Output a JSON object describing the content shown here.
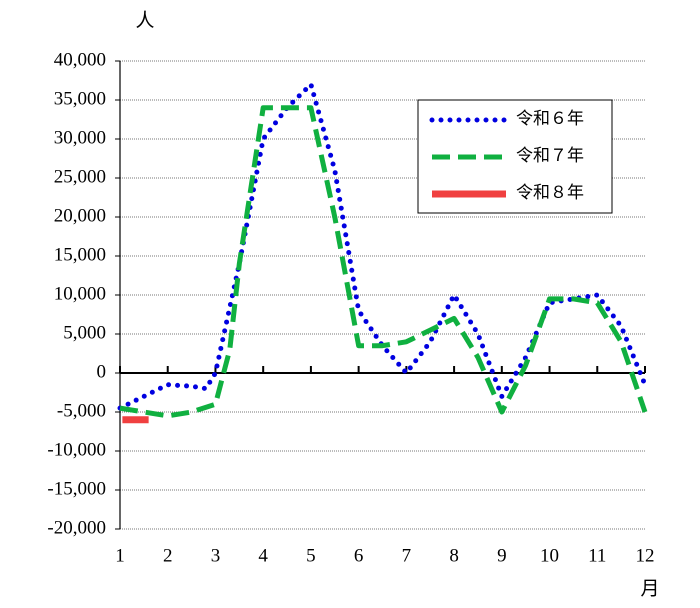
{
  "chart_data": {
    "type": "line",
    "y_unit": "人",
    "x_unit": "月",
    "xlim": [
      1,
      12
    ],
    "xticks": [
      1,
      2,
      3,
      4,
      5,
      6,
      7,
      8,
      9,
      10,
      11,
      12
    ],
    "ylim": [
      -20000,
      40000
    ],
    "yticks": [
      {
        "value": -20000,
        "label": "-20,000"
      },
      {
        "value": -15000,
        "label": "-15,000"
      },
      {
        "value": -10000,
        "label": "-10,000"
      },
      {
        "value": -5000,
        "label": "-5,000"
      },
      0,
      {
        "value": 5000,
        "label": "5,000"
      },
      {
        "value": 10000,
        "label": "10,000"
      },
      {
        "value": 15000,
        "label": "15,000"
      },
      {
        "value": 20000,
        "label": "20,000"
      },
      {
        "value": 25000,
        "label": "25,000"
      },
      {
        "value": 30000,
        "label": "30,000"
      },
      {
        "value": 35000,
        "label": "35,000"
      },
      {
        "value": 40000,
        "label": "40,000"
      }
    ],
    "negative_tick_color": "#e00000",
    "grid": true,
    "legend": "upper right",
    "series": [
      {
        "name": "令和６年",
        "color": "#0000e0",
        "style": "dotted",
        "x": [
          1,
          1.5,
          2,
          2.5,
          2.8,
          3,
          3.5,
          4,
          4.5,
          5,
          5.5,
          6,
          6.5,
          7,
          7.5,
          8,
          8.5,
          9,
          9.5,
          10,
          10.5,
          11,
          11.5,
          12
        ],
        "values": [
          -4500,
          -3000,
          -1500,
          -1700,
          -2000,
          0,
          14000,
          30000,
          34000,
          37000,
          26000,
          8000,
          3500,
          0,
          4000,
          10000,
          5000,
          -3000,
          2000,
          9000,
          9500,
          10000,
          6000,
          -1500
        ]
      },
      {
        "name": "令和７年",
        "color": "#10b040",
        "style": "dashed",
        "x": [
          1,
          1.5,
          2,
          2.5,
          3,
          3.3,
          3.5,
          4,
          4.5,
          5,
          5.5,
          6,
          6.5,
          7,
          7.5,
          8,
          8.5,
          9,
          9.5,
          10,
          10.5,
          11,
          11.5,
          12
        ],
        "values": [
          -4500,
          -5000,
          -5500,
          -5000,
          -4000,
          3000,
          14000,
          34000,
          34000,
          34000,
          20000,
          3500,
          3500,
          4000,
          5500,
          7000,
          2000,
          -5000,
          1000,
          9500,
          9500,
          9000,
          4000,
          -5000
        ]
      },
      {
        "name": "令和８年",
        "color": "#f04040",
        "style": "solid",
        "x": [
          1.05,
          1.6
        ],
        "values": [
          -6000,
          -6000
        ]
      }
    ]
  }
}
